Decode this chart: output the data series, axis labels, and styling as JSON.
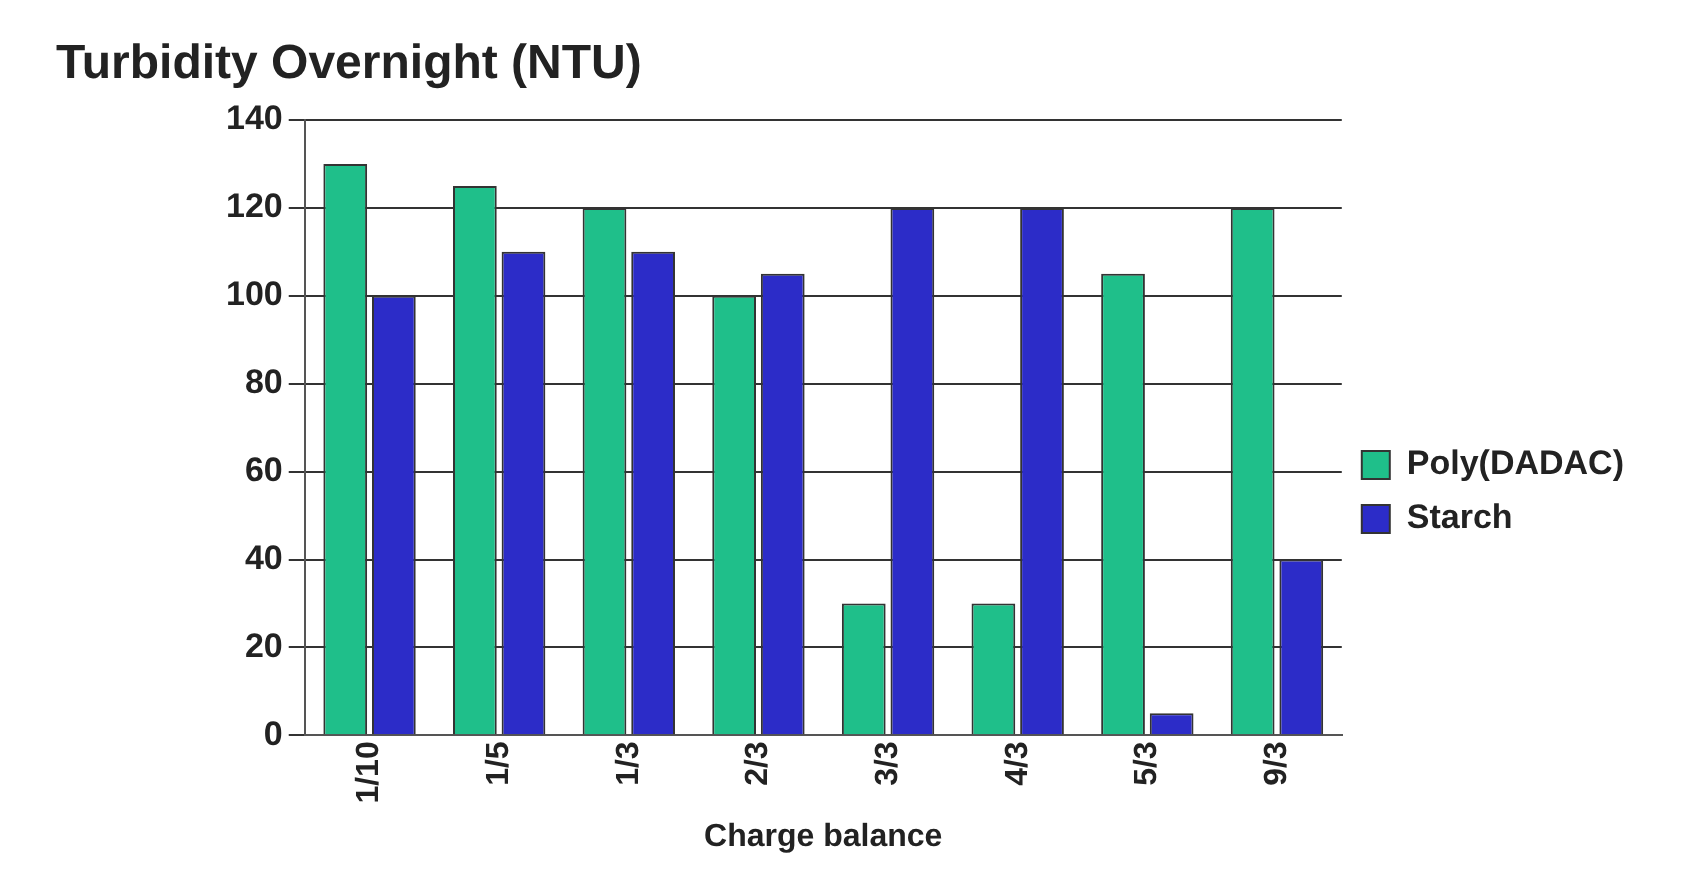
{
  "chart_data": {
    "type": "bar",
    "title": "Turbidity Overnight (NTU)",
    "xlabel": "Charge balance",
    "categories": [
      "1/10",
      "1/5",
      "1/3",
      "2/3",
      "3/3",
      "4/3",
      "5/3",
      "9/3"
    ],
    "series": [
      {
        "name": "Poly(DADAC)",
        "color": "#1fbf8a",
        "values": [
          130,
          125,
          120,
          100,
          30,
          30,
          105,
          120
        ]
      },
      {
        "name": "Starch",
        "color": "#2c2cc8",
        "values": [
          100,
          110,
          110,
          105,
          120,
          120,
          5,
          40
        ]
      }
    ],
    "ylim": [
      0,
      140
    ],
    "yticks": [
      0,
      20,
      40,
      60,
      80,
      100,
      120,
      140
    ],
    "grid": "y",
    "legend": "right"
  }
}
